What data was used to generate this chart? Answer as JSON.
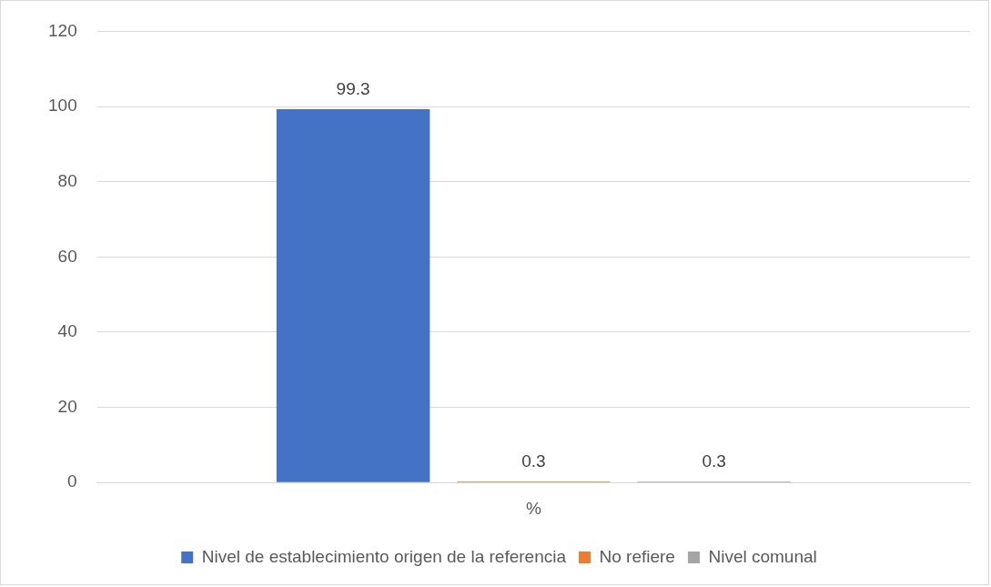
{
  "chart_data": {
    "type": "bar",
    "categories": [
      "%"
    ],
    "series": [
      {
        "name": "Nivel de establecimiento origen de la referencia",
        "color": "#4472c4",
        "values": [
          99.3
        ]
      },
      {
        "name": "No refiere",
        "color": "#ed7d31",
        "values": [
          0.3
        ]
      },
      {
        "name": "Nivel comunal",
        "color": "#a5a5a5",
        "values": [
          0.3
        ]
      }
    ],
    "ylim": [
      0,
      120
    ],
    "yticks": [
      0,
      20,
      40,
      60,
      80,
      100,
      120
    ],
    "grid": "y",
    "legend": "bottom",
    "data_labels": true
  }
}
